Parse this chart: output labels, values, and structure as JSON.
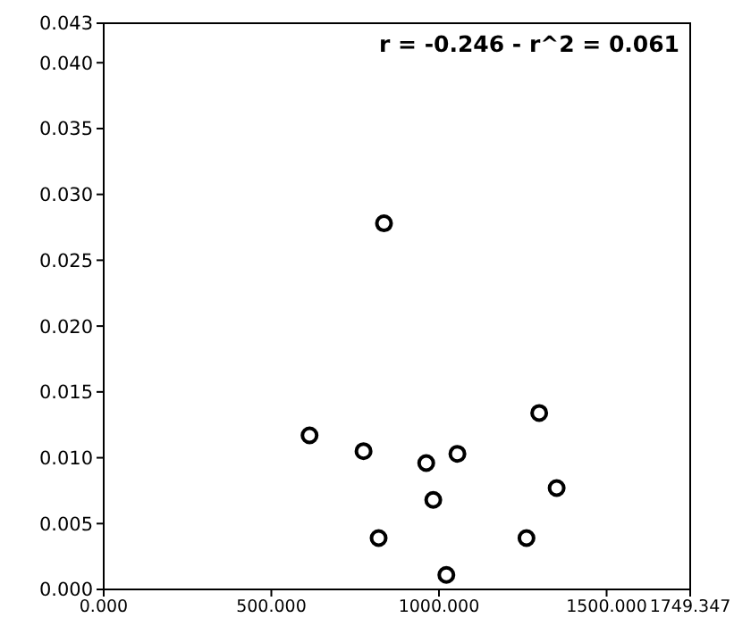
{
  "chart_data": {
    "type": "scatter",
    "annotations": [
      "r = -0.246 - r^2 = 0.061"
    ],
    "marker": "circle",
    "x": [
      614,
      775,
      836,
      820,
      962,
      983,
      1055,
      1022,
      1299,
      1351,
      1261
    ],
    "series": [
      {
        "color": "#000000",
        "values": [
          0.0117,
          0.0105,
          0.0278,
          0.0039,
          0.0096,
          0.0068,
          0.0103,
          0.0011,
          0.0134,
          0.0077,
          0.0039
        ]
      }
    ],
    "xlim": [
      0,
      1749.347
    ],
    "xticks": [
      {
        "value": 0,
        "label": "0.000"
      },
      {
        "value": 500,
        "label": "500.000"
      },
      {
        "value": 1000,
        "label": "1000.000"
      },
      {
        "value": 1500,
        "label": "1500.000"
      },
      {
        "value": 1749.347,
        "label": "1749.347"
      }
    ],
    "ylim": [
      0,
      0.043
    ],
    "yticks": [
      {
        "value": 0,
        "label": "0.000"
      },
      {
        "value": 0.005,
        "label": "0.005"
      },
      {
        "value": 0.01,
        "label": "0.010"
      },
      {
        "value": 0.015,
        "label": "0.015"
      },
      {
        "value": 0.02,
        "label": "0.020"
      },
      {
        "value": 0.025,
        "label": "0.025"
      },
      {
        "value": 0.03,
        "label": "0.030"
      },
      {
        "value": 0.035,
        "label": "0.035"
      },
      {
        "value": 0.04,
        "label": "0.040"
      },
      {
        "value": 0.043,
        "label": "0.043"
      }
    ]
  }
}
